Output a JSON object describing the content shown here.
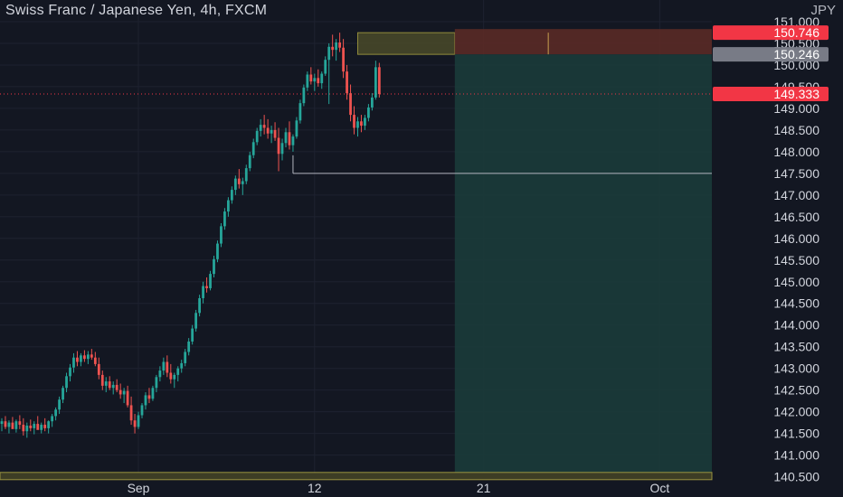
{
  "header": {
    "title": "Swiss Franc / Japanese Yen, 4h, FXCM",
    "currency": "JPY"
  },
  "colors": {
    "background": "#131722",
    "grid": "#1e2230",
    "up": "#26a69a",
    "down": "#ef5350",
    "axis_text": "#d1d4dc",
    "target_zone": "#1b3b3a",
    "stop_zone": "#5a2a26",
    "label_red": "#f23645",
    "label_gray": "#787b86"
  },
  "chart_data": {
    "type": "candlestick",
    "title": "Swiss Franc / Japanese Yen, 4h, FXCM",
    "ylabel": "JPY",
    "ylim": [
      140.45,
      151.5
    ],
    "y_ticks": [
      "140.500",
      "141.000",
      "141.500",
      "142.000",
      "142.500",
      "143.000",
      "143.500",
      "144.000",
      "144.500",
      "145.000",
      "145.500",
      "146.000",
      "146.500",
      "147.000",
      "147.500",
      "148.000",
      "148.500",
      "149.000",
      "149.500",
      "150.000",
      "150.500",
      "151.000"
    ],
    "x_ticks": [
      {
        "label": "Sep",
        "bar": 38
      },
      {
        "label": "12",
        "bar": 87
      },
      {
        "label": "21",
        "bar": 134
      },
      {
        "label": "Oct",
        "bar": 183
      }
    ],
    "bars_visible": 198,
    "candles": [
      [
        141.72,
        141.85,
        141.55,
        141.78
      ],
      [
        141.78,
        141.9,
        141.6,
        141.65
      ],
      [
        141.65,
        141.8,
        141.5,
        141.75
      ],
      [
        141.75,
        141.88,
        141.62,
        141.6
      ],
      [
        141.6,
        141.82,
        141.52,
        141.78
      ],
      [
        141.78,
        141.92,
        141.6,
        141.7
      ],
      [
        141.7,
        141.85,
        141.45,
        141.55
      ],
      [
        141.55,
        141.75,
        141.4,
        141.68
      ],
      [
        141.68,
        141.82,
        141.55,
        141.62
      ],
      [
        141.62,
        141.78,
        141.48,
        141.72
      ],
      [
        141.72,
        141.9,
        141.6,
        141.58
      ],
      [
        141.58,
        141.75,
        141.5,
        141.7
      ],
      [
        141.7,
        141.85,
        141.55,
        141.62
      ],
      [
        141.62,
        141.8,
        141.5,
        141.78
      ],
      [
        141.78,
        141.95,
        141.65,
        141.9
      ],
      [
        141.9,
        142.1,
        141.8,
        142.05
      ],
      [
        142.05,
        142.35,
        141.95,
        142.28
      ],
      [
        142.28,
        142.6,
        142.2,
        142.55
      ],
      [
        142.55,
        142.9,
        142.45,
        142.82
      ],
      [
        142.82,
        143.1,
        142.7,
        143.02
      ],
      [
        143.02,
        143.35,
        142.9,
        143.25
      ],
      [
        143.25,
        143.4,
        143.05,
        143.15
      ],
      [
        143.15,
        143.35,
        143.05,
        143.3
      ],
      [
        143.3,
        143.42,
        143.15,
        143.22
      ],
      [
        143.22,
        143.4,
        143.1,
        143.32
      ],
      [
        143.32,
        143.45,
        143.2,
        143.25
      ],
      [
        143.25,
        143.38,
        143.05,
        143.1
      ],
      [
        143.1,
        143.25,
        142.75,
        142.85
      ],
      [
        142.85,
        142.95,
        142.5,
        142.6
      ],
      [
        142.6,
        142.8,
        142.45,
        142.7
      ],
      [
        142.7,
        142.82,
        142.5,
        142.55
      ],
      [
        142.55,
        142.7,
        142.4,
        142.62
      ],
      [
        142.62,
        142.75,
        142.45,
        142.5
      ],
      [
        142.5,
        142.65,
        142.3,
        142.4
      ],
      [
        142.4,
        142.55,
        142.2,
        142.48
      ],
      [
        142.48,
        142.6,
        142.1,
        142.15
      ],
      [
        142.15,
        142.35,
        141.7,
        141.8
      ],
      [
        141.8,
        141.95,
        141.5,
        141.65
      ],
      [
        141.65,
        142.0,
        141.6,
        141.92
      ],
      [
        141.92,
        142.2,
        141.85,
        142.15
      ],
      [
        142.15,
        142.45,
        142.05,
        142.38
      ],
      [
        142.38,
        142.55,
        142.2,
        142.3
      ],
      [
        142.3,
        142.6,
        142.25,
        142.55
      ],
      [
        142.55,
        142.85,
        142.45,
        142.8
      ],
      [
        142.8,
        143.05,
        142.7,
        142.95
      ],
      [
        142.95,
        143.25,
        142.85,
        143.15
      ],
      [
        143.15,
        143.3,
        142.8,
        142.9
      ],
      [
        142.9,
        143.1,
        142.65,
        142.75
      ],
      [
        142.75,
        142.9,
        142.55,
        142.85
      ],
      [
        142.85,
        143.05,
        142.7,
        143.0
      ],
      [
        143.0,
        143.2,
        142.9,
        143.12
      ],
      [
        143.12,
        143.45,
        143.05,
        143.38
      ],
      [
        143.38,
        143.7,
        143.3,
        143.62
      ],
      [
        143.62,
        144.0,
        143.55,
        143.92
      ],
      [
        143.92,
        144.35,
        143.85,
        144.28
      ],
      [
        144.28,
        144.7,
        144.2,
        144.62
      ],
      [
        144.62,
        145.0,
        144.5,
        144.9
      ],
      [
        144.9,
        145.1,
        144.75,
        144.85
      ],
      [
        144.85,
        145.25,
        144.8,
        145.18
      ],
      [
        145.18,
        145.6,
        145.1,
        145.52
      ],
      [
        145.52,
        145.95,
        145.45,
        145.88
      ],
      [
        145.88,
        146.35,
        145.8,
        146.28
      ],
      [
        146.28,
        146.7,
        146.2,
        146.62
      ],
      [
        146.62,
        146.95,
        146.5,
        146.88
      ],
      [
        146.88,
        147.2,
        146.8,
        147.12
      ],
      [
        147.12,
        147.45,
        147.0,
        147.38
      ],
      [
        147.38,
        147.6,
        147.15,
        147.25
      ],
      [
        147.25,
        147.4,
        147.0,
        147.32
      ],
      [
        147.32,
        147.7,
        147.25,
        147.62
      ],
      [
        147.62,
        148.0,
        147.55,
        147.92
      ],
      [
        147.92,
        148.3,
        147.85,
        148.22
      ],
      [
        148.22,
        148.55,
        148.15,
        148.48
      ],
      [
        148.48,
        148.75,
        148.35,
        148.62
      ],
      [
        148.62,
        148.85,
        148.4,
        148.55
      ],
      [
        148.55,
        148.75,
        148.3,
        148.42
      ],
      [
        148.42,
        148.6,
        148.2,
        148.5
      ],
      [
        148.5,
        148.68,
        148.25,
        148.32
      ],
      [
        148.32,
        148.55,
        147.55,
        147.95
      ],
      [
        147.95,
        148.3,
        147.8,
        148.2
      ],
      [
        148.2,
        148.55,
        148.1,
        148.45
      ],
      [
        148.45,
        148.7,
        148.05,
        148.15
      ],
      [
        148.15,
        148.4,
        148.0,
        148.35
      ],
      [
        148.35,
        148.8,
        148.3,
        148.72
      ],
      [
        148.72,
        149.2,
        148.65,
        149.12
      ],
      [
        149.12,
        149.55,
        149.05,
        149.48
      ],
      [
        149.48,
        149.85,
        149.4,
        149.78
      ],
      [
        149.78,
        149.95,
        149.55,
        149.62
      ],
      [
        149.62,
        149.8,
        149.4,
        149.7
      ],
      [
        149.7,
        149.9,
        149.5,
        149.58
      ],
      [
        149.58,
        149.85,
        149.45,
        149.8
      ],
      [
        149.8,
        150.2,
        149.75,
        150.12
      ],
      [
        150.12,
        150.5,
        149.1,
        150.42
      ],
      [
        150.42,
        150.7,
        150.2,
        150.35
      ],
      [
        150.35,
        150.6,
        150.1,
        150.52
      ],
      [
        150.52,
        150.746,
        150.3,
        150.4
      ],
      [
        150.4,
        150.6,
        149.7,
        149.85
      ],
      [
        149.85,
        150.0,
        149.2,
        149.35
      ],
      [
        149.35,
        149.55,
        148.7,
        148.85
      ],
      [
        148.85,
        149.05,
        148.4,
        148.55
      ],
      [
        148.55,
        148.8,
        148.35,
        148.7
      ],
      [
        148.7,
        148.85,
        148.45,
        148.6
      ],
      [
        148.6,
        148.85,
        148.5,
        148.78
      ],
      [
        148.78,
        149.1,
        148.7,
        149.02
      ],
      [
        149.02,
        149.35,
        148.95,
        149.25
      ],
      [
        149.25,
        150.1,
        149.2,
        149.95
      ],
      [
        149.95,
        150.05,
        149.25,
        149.33
      ]
    ],
    "annotations": {
      "current_price": "149.333",
      "stop_price": "150.746",
      "entry_price": "150.246",
      "target_price": "140.500",
      "horizontal_line": 147.5
    }
  }
}
